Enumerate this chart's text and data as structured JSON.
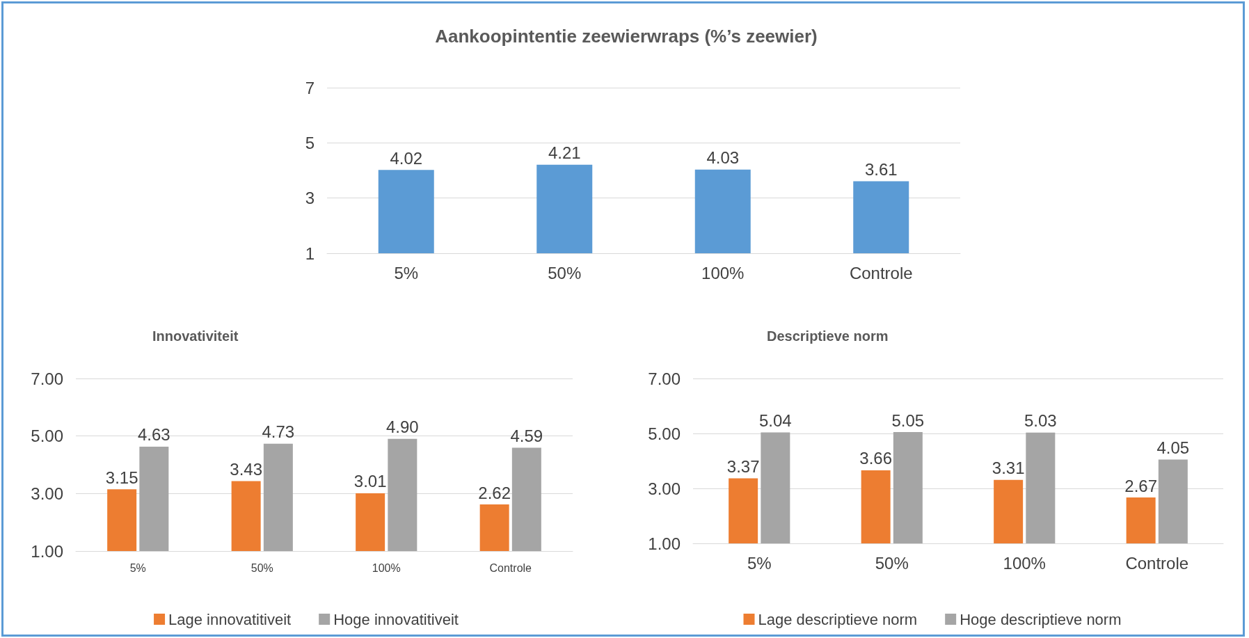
{
  "chart_data": [
    {
      "type": "bar",
      "title": "Aankoopintentie zeewierwraps (%’s zeewier)",
      "categories": [
        "5%",
        "50%",
        "100%",
        "Controle"
      ],
      "values": [
        4.02,
        4.21,
        4.03,
        3.61
      ],
      "color": "#5b9bd5",
      "ylim": [
        1,
        7
      ],
      "yticks": [
        1,
        3,
        5,
        7
      ],
      "grid": "y",
      "data_labels": true,
      "legend": false
    },
    {
      "type": "bar",
      "title": "Innovativiteit",
      "categories": [
        "5%",
        "50%",
        "100%",
        "Controle"
      ],
      "series": [
        {
          "name": "Lage innovatitiveit",
          "color": "#ed7d31",
          "values": [
            3.15,
            3.43,
            3.01,
            2.62
          ]
        },
        {
          "name": "Hoge innovatitiveit",
          "color": "#a5a5a5",
          "values": [
            4.63,
            4.73,
            4.9,
            4.59
          ],
          "value_labels": [
            "4.63",
            "4.73",
            "4.90",
            "4.59"
          ]
        }
      ],
      "ylim": [
        1,
        7
      ],
      "yticks": [
        {
          "value": 1,
          "label": "1.00"
        },
        {
          "value": 3,
          "label": "3.00"
        },
        {
          "value": 5,
          "label": "5.00"
        },
        {
          "value": 7,
          "label": "7.00"
        }
      ],
      "grid": "y",
      "data_labels": true,
      "legend": "bottom"
    },
    {
      "type": "bar",
      "title": "Descriptieve norm",
      "categories": [
        "5%",
        "50%",
        "100%",
        "Controle"
      ],
      "series": [
        {
          "name": "Lage descriptieve norm",
          "color": "#ed7d31",
          "values": [
            3.37,
            3.66,
            3.31,
            2.67
          ]
        },
        {
          "name": "Hoge descriptieve norm",
          "color": "#a5a5a5",
          "values": [
            5.04,
            5.05,
            5.03,
            4.05
          ]
        }
      ],
      "ylim": [
        1,
        7
      ],
      "yticks": [
        {
          "value": 1,
          "label": "1.00"
        },
        {
          "value": 3,
          "label": "3.00"
        },
        {
          "value": 5,
          "label": "5.00"
        },
        {
          "value": 7,
          "label": "7.00"
        }
      ],
      "grid": "y",
      "data_labels": true,
      "legend": "bottom"
    }
  ]
}
